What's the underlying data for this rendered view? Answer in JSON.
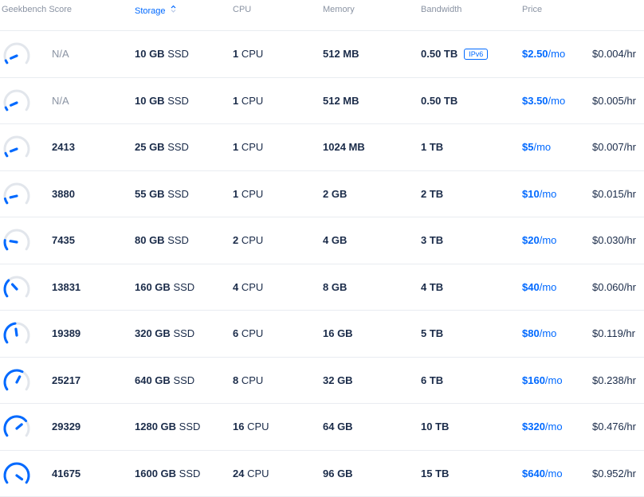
{
  "header": {
    "score": "Geekbench Score",
    "storage": "Storage",
    "cpu": "CPU",
    "memory": "Memory",
    "bandwidth": "Bandwidth",
    "price": "Price"
  },
  "colors": {
    "accent": "#0069ff",
    "muted": "#8a93a3",
    "text": "#1a2b49",
    "track": "#e2e6ec"
  },
  "rows": [
    {
      "score": "N/A",
      "level": 0.05,
      "storage_num": "10 GB",
      "storage_type": "SSD",
      "cpu_num": "1",
      "cpu_label": "CPU",
      "memory": "512 MB",
      "bandwidth": "0.50 TB",
      "badge": "IPv6",
      "price_amt": "$2.50",
      "price_unit": "/mo",
      "hourly": "$0.004/hr"
    },
    {
      "score": "N/A",
      "level": 0.05,
      "storage_num": "10 GB",
      "storage_type": "SSD",
      "cpu_num": "1",
      "cpu_label": "CPU",
      "memory": "512 MB",
      "bandwidth": "0.50 TB",
      "badge": "",
      "price_amt": "$3.50",
      "price_unit": "/mo",
      "hourly": "$0.005/hr"
    },
    {
      "score": "2413",
      "level": 0.06,
      "storage_num": "25 GB",
      "storage_type": "SSD",
      "cpu_num": "1",
      "cpu_label": "CPU",
      "memory": "1024 MB",
      "bandwidth": "1 TB",
      "badge": "",
      "price_amt": "$5",
      "price_unit": "/mo",
      "hourly": "$0.007/hr"
    },
    {
      "score": "3880",
      "level": 0.09,
      "storage_num": "55 GB",
      "storage_type": "SSD",
      "cpu_num": "1",
      "cpu_label": "CPU",
      "memory": "2 GB",
      "bandwidth": "2 TB",
      "badge": "",
      "price_amt": "$10",
      "price_unit": "/mo",
      "hourly": "$0.015/hr"
    },
    {
      "score": "7435",
      "level": 0.18,
      "storage_num": "80 GB",
      "storage_type": "SSD",
      "cpu_num": "2",
      "cpu_label": "CPU",
      "memory": "4 GB",
      "bandwidth": "3 TB",
      "badge": "",
      "price_amt": "$20",
      "price_unit": "/mo",
      "hourly": "$0.030/hr"
    },
    {
      "score": "13831",
      "level": 0.33,
      "storage_num": "160 GB",
      "storage_type": "SSD",
      "cpu_num": "4",
      "cpu_label": "CPU",
      "memory": "8 GB",
      "bandwidth": "4 TB",
      "badge": "",
      "price_amt": "$40",
      "price_unit": "/mo",
      "hourly": "$0.060/hr"
    },
    {
      "score": "19389",
      "level": 0.47,
      "storage_num": "320 GB",
      "storage_type": "SSD",
      "cpu_num": "6",
      "cpu_label": "CPU",
      "memory": "16 GB",
      "bandwidth": "5 TB",
      "badge": "",
      "price_amt": "$80",
      "price_unit": "/mo",
      "hourly": "$0.119/hr"
    },
    {
      "score": "25217",
      "level": 0.61,
      "storage_num": "640 GB",
      "storage_type": "SSD",
      "cpu_num": "8",
      "cpu_label": "CPU",
      "memory": "32 GB",
      "bandwidth": "6 TB",
      "badge": "",
      "price_amt": "$160",
      "price_unit": "/mo",
      "hourly": "$0.238/hr"
    },
    {
      "score": "29329",
      "level": 0.7,
      "storage_num": "1280 GB",
      "storage_type": "SSD",
      "cpu_num": "16",
      "cpu_label": "CPU",
      "memory": "64 GB",
      "bandwidth": "10 TB",
      "badge": "",
      "price_amt": "$320",
      "price_unit": "/mo",
      "hourly": "$0.476/hr"
    },
    {
      "score": "41675",
      "level": 1.0,
      "storage_num": "1600 GB",
      "storage_type": "SSD",
      "cpu_num": "24",
      "cpu_label": "CPU",
      "memory": "96 GB",
      "bandwidth": "15 TB",
      "badge": "",
      "price_amt": "$640",
      "price_unit": "/mo",
      "hourly": "$0.952/hr"
    }
  ]
}
